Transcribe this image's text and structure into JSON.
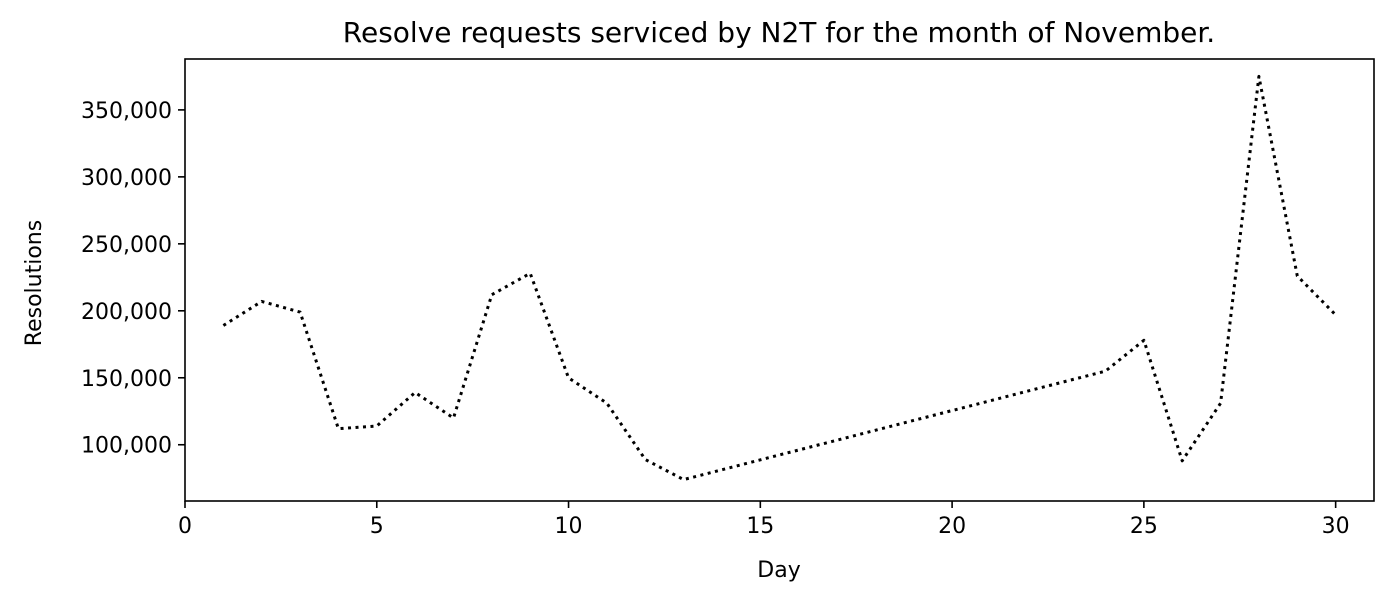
{
  "chart_data": {
    "type": "line",
    "title": "Resolve requests serviced by N2T for the month of November.",
    "xlabel": "Day",
    "ylabel": "Resolutions",
    "xlim": [
      0,
      31
    ],
    "ylim": [
      58000,
      388000
    ],
    "grid": false,
    "line_style": "dotted",
    "line_color": "#000000",
    "x_ticks": [
      0,
      5,
      10,
      15,
      20,
      25,
      30
    ],
    "x_tick_labels": [
      "0",
      "5",
      "10",
      "15",
      "20",
      "25",
      "30"
    ],
    "y_ticks": [
      100000,
      150000,
      200000,
      250000,
      300000,
      350000
    ],
    "y_tick_labels": [
      "100,000",
      "150,000",
      "200,000",
      "250,000",
      "300,000",
      "350,000"
    ],
    "series": [
      {
        "x": [
          1,
          2,
          3,
          4,
          5,
          6,
          7,
          8,
          9,
          10,
          11,
          12,
          13,
          24,
          25,
          26,
          27,
          28,
          29,
          30
        ],
        "y": [
          189000,
          207000,
          199000,
          112000,
          114000,
          139000,
          120000,
          212000,
          228000,
          150000,
          131000,
          89000,
          74000,
          155000,
          178000,
          88000,
          131000,
          375000,
          226000,
          197000
        ]
      }
    ]
  }
}
